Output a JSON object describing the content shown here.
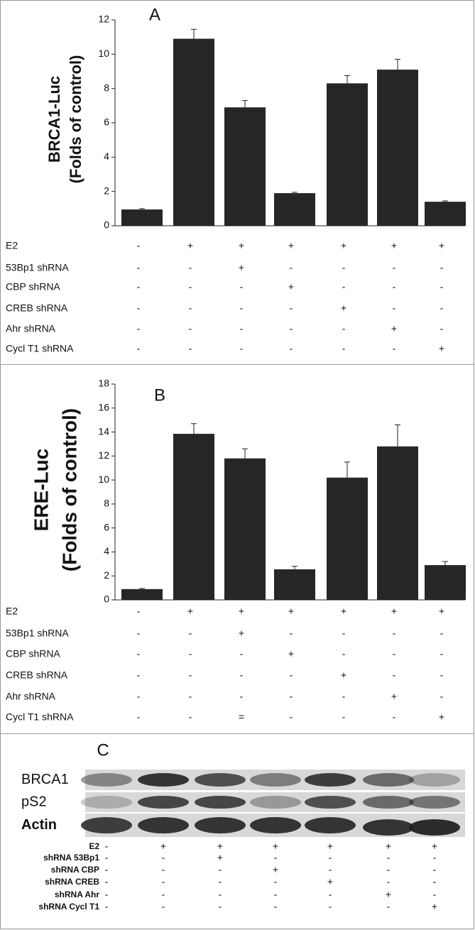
{
  "chart_data": [
    {
      "type": "bar",
      "panel": "A",
      "ylabel": [
        "BRCA1-Luc",
        "(Folds of control)"
      ],
      "values": [
        0.95,
        10.9,
        6.9,
        1.9,
        8.3,
        9.1,
        1.4
      ],
      "errors": [
        0.05,
        0.55,
        0.4,
        0.05,
        0.45,
        0.6,
        0.05
      ],
      "color": "#262626",
      "ylim": [
        0,
        12
      ],
      "yticks": [
        0,
        2,
        4,
        6,
        8,
        10,
        12
      ],
      "conditions": [
        {
          "label": "E2",
          "cells": [
            "-",
            "+",
            "+",
            "+",
            "+",
            "+",
            "+"
          ]
        },
        {
          "label": "53Bp1 shRNA",
          "cells": [
            "-",
            "-",
            "+",
            "-",
            "-",
            "-",
            "-"
          ]
        },
        {
          "label": "CBP shRNA",
          "cells": [
            "-",
            "-",
            "-",
            "+",
            "-",
            "-",
            "-"
          ]
        },
        {
          "label": "CREB shRNA",
          "cells": [
            "-",
            "-",
            "-",
            "-",
            "+",
            "-",
            "-"
          ]
        },
        {
          "label": "Ahr shRNA",
          "cells": [
            "-",
            "-",
            "-",
            "-",
            "-",
            "+",
            "-"
          ]
        },
        {
          "label": "Cycl T1 shRNA",
          "cells": [
            "-",
            "-",
            "-",
            "-",
            "-",
            "-",
            "+"
          ]
        }
      ]
    },
    {
      "type": "bar",
      "panel": "B",
      "ylabel": [
        "ERE-Luc",
        "(Folds of control)"
      ],
      "values": [
        0.9,
        13.85,
        11.8,
        2.55,
        10.2,
        12.8,
        2.9
      ],
      "errors": [
        0.05,
        0.85,
        0.8,
        0.25,
        1.3,
        1.8,
        0.3
      ],
      "color": "#262626",
      "ylim": [
        0,
        18
      ],
      "yticks": [
        0,
        2,
        4,
        6,
        8,
        10,
        12,
        14,
        16,
        18
      ],
      "conditions": [
        {
          "label": "E2",
          "cells": [
            "-",
            "+",
            "+",
            "+",
            "+",
            "+",
            "+"
          ]
        },
        {
          "label": "53Bp1 shRNA",
          "cells": [
            "-",
            "-",
            "+",
            "-",
            "-",
            "-",
            "-"
          ]
        },
        {
          "label": "CBP shRNA",
          "cells": [
            "-",
            "-",
            "-",
            "+",
            "-",
            "-",
            "-"
          ]
        },
        {
          "label": "CREB shRNA",
          "cells": [
            "-",
            "-",
            "-",
            "-",
            "+",
            "-",
            "-"
          ]
        },
        {
          "label": "Ahr shRNA",
          "cells": [
            "-",
            "-",
            "-",
            "-",
            "-",
            "+",
            "-"
          ]
        },
        {
          "label": "Cycl T1 shRNA",
          "cells": [
            "-",
            "-",
            "=",
            "-",
            "-",
            "-",
            "+"
          ]
        }
      ]
    }
  ],
  "blot": {
    "panel": "C",
    "rows": [
      "BRCA1",
      "pS2",
      "Actin"
    ],
    "conditions": [
      {
        "label": "E2",
        "cells": [
          "-",
          "+",
          "+",
          "+",
          "+",
          "+",
          "+"
        ]
      },
      {
        "label": "shRNA 53Bp1",
        "cells": [
          "-",
          "-",
          "+",
          "-",
          "-",
          "-",
          "-"
        ]
      },
      {
        "label": "shRNA CBP",
        "cells": [
          "-",
          "-",
          "-",
          "+",
          "-",
          "-",
          "-"
        ]
      },
      {
        "label": "shRNA CREB",
        "cells": [
          "-",
          "-",
          "-",
          "-",
          "+",
          "-",
          "-"
        ]
      },
      {
        "label": "shRNA Ahr",
        "cells": [
          "-",
          "-",
          "-",
          "-",
          "-",
          "+",
          "-"
        ]
      },
      {
        "label": "shRNA Cycl T1",
        "cells": [
          "-",
          "-",
          "-",
          "-",
          "-",
          "-",
          "+"
        ]
      }
    ]
  }
}
